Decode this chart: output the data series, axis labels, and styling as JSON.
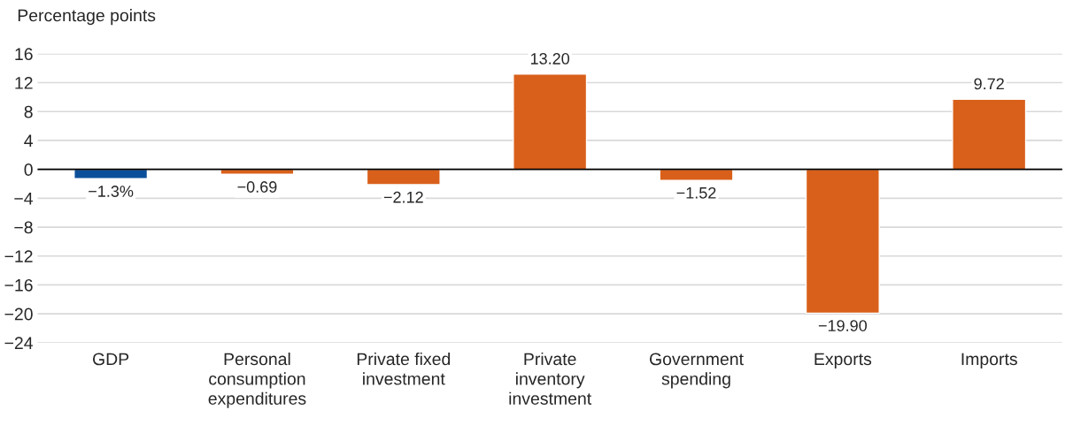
{
  "chart_data": {
    "type": "bar",
    "ylabel": "Percentage points",
    "categories": [
      "GDP",
      "Personal\nconsumption\nexpenditures",
      "Private fixed\ninvestment",
      "Private\ninventory\ninvestment",
      "Government\nspending",
      "Exports",
      "Imports"
    ],
    "values": [
      -1.3,
      -0.69,
      -2.12,
      13.2,
      -1.52,
      -19.9,
      9.72
    ],
    "colors": [
      "#0b4f9a",
      "#d9601a",
      "#d9601a",
      "#d9601a",
      "#d9601a",
      "#d9601a",
      "#d9601a"
    ],
    "value_labels": [
      "−1.3%",
      "−0.69",
      "−2.12",
      "13.20",
      "−1.52",
      "−19.90",
      "9.72"
    ],
    "ylim": [
      -24,
      16
    ],
    "yticks": [
      {
        "value": -24,
        "label": "−24"
      },
      {
        "value": -20,
        "label": "−20"
      },
      {
        "value": -16,
        "label": "−16"
      },
      {
        "value": -12,
        "label": "−12"
      },
      {
        "value": -8,
        "label": "−8"
      },
      {
        "value": -4,
        "label": "−4"
      },
      0,
      4,
      8,
      12,
      16
    ],
    "grid": "y",
    "legend": false
  }
}
